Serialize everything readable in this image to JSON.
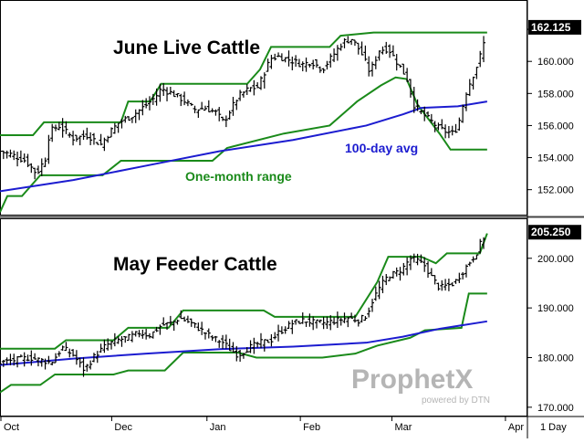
{
  "chart_data": [
    {
      "type": "ohlc",
      "title": "June Live Cattle",
      "ylim": [
        150.5,
        163.6
      ],
      "y_ticks": [
        "162.000",
        "160.000",
        "158.000",
        "156.000",
        "154.000",
        "152.000"
      ],
      "last_price": "162.125",
      "annotations": [
        {
          "text": "One-month range",
          "color": "#1a8a1a"
        },
        {
          "text": "100-day avg",
          "color": "#1c1cd0"
        }
      ],
      "price_path": [
        [
          0,
          154.4
        ],
        [
          6,
          154.2
        ],
        [
          14,
          153.8
        ],
        [
          20,
          153.0
        ],
        [
          25,
          154.0
        ],
        [
          27,
          155.6
        ],
        [
          32,
          156.0
        ],
        [
          40,
          155.2
        ],
        [
          48,
          155.4
        ],
        [
          55,
          154.8
        ],
        [
          60,
          155.6
        ],
        [
          65,
          156.2
        ],
        [
          72,
          156.6
        ],
        [
          80,
          157.3
        ],
        [
          85,
          157.8
        ],
        [
          88,
          158.3
        ],
        [
          94,
          158.0
        ],
        [
          100,
          157.6
        ],
        [
          106,
          157.0
        ],
        [
          112,
          157.1
        ],
        [
          118,
          156.8
        ],
        [
          122,
          156.2
        ],
        [
          126,
          157.0
        ],
        [
          130,
          157.8
        ],
        [
          136,
          158.3
        ],
        [
          141,
          158.4
        ],
        [
          145,
          159.5
        ],
        [
          148,
          160.2
        ],
        [
          152,
          160.3
        ],
        [
          158,
          160.1
        ],
        [
          165,
          159.8
        ],
        [
          170,
          160.0
        ],
        [
          176,
          159.5
        ],
        [
          182,
          160.4
        ],
        [
          187,
          161.2
        ],
        [
          192,
          161.4
        ],
        [
          197,
          160.6
        ],
        [
          202,
          159.3
        ],
        [
          207,
          160.7
        ],
        [
          212,
          160.8
        ],
        [
          217,
          159.9
        ],
        [
          222,
          159.0
        ],
        [
          226,
          157.3
        ],
        [
          230,
          156.8
        ],
        [
          235,
          156.3
        ],
        [
          240,
          155.8
        ],
        [
          244,
          155.6
        ],
        [
          248,
          155.5
        ],
        [
          251,
          156.4
        ],
        [
          254,
          157.9
        ],
        [
          257,
          158.8
        ],
        [
          260,
          159.6
        ],
        [
          263,
          160.6
        ],
        [
          266,
          162.0
        ]
      ],
      "range_high_path": [
        [
          0,
          155.4
        ],
        [
          18,
          155.4
        ],
        [
          24,
          156.2
        ],
        [
          66,
          156.2
        ],
        [
          70,
          157.5
        ],
        [
          82,
          157.5
        ],
        [
          88,
          158.6
        ],
        [
          135,
          158.6
        ],
        [
          142,
          159.5
        ],
        [
          148,
          160.9
        ],
        [
          180,
          160.9
        ],
        [
          186,
          161.6
        ],
        [
          204,
          161.8
        ],
        [
          266,
          161.8
        ]
      ],
      "range_low_path": [
        [
          0,
          150.6
        ],
        [
          4,
          151.6
        ],
        [
          12,
          151.6
        ],
        [
          22,
          152.9
        ],
        [
          56,
          152.9
        ],
        [
          66,
          153.8
        ],
        [
          116,
          153.8
        ],
        [
          124,
          154.6
        ],
        [
          155,
          155.5
        ],
        [
          180,
          156.0
        ],
        [
          195,
          157.5
        ],
        [
          208,
          158.5
        ],
        [
          216,
          159.0
        ],
        [
          222,
          158.9
        ],
        [
          228,
          157.3
        ],
        [
          240,
          155.5
        ],
        [
          246,
          154.5
        ],
        [
          266,
          154.5
        ]
      ],
      "avg_path": [
        [
          0,
          151.9
        ],
        [
          40,
          152.6
        ],
        [
          80,
          153.5
        ],
        [
          120,
          154.4
        ],
        [
          160,
          155.1
        ],
        [
          200,
          156.0
        ],
        [
          220,
          156.7
        ],
        [
          230,
          157.1
        ],
        [
          250,
          157.2
        ],
        [
          266,
          157.5
        ]
      ]
    },
    {
      "type": "ohlc",
      "title": "May Feeder Cattle",
      "ylim": [
        168.5,
        207.5
      ],
      "y_ticks": [
        "200.000",
        "190.000",
        "180.000",
        "170.000"
      ],
      "last_price": "205.250",
      "price_path": [
        [
          0,
          179.0
        ],
        [
          8,
          179.5
        ],
        [
          16,
          180.0
        ],
        [
          22,
          179.5
        ],
        [
          28,
          179.0
        ],
        [
          34,
          182.0
        ],
        [
          40,
          180.5
        ],
        [
          46,
          177.5
        ],
        [
          52,
          180.5
        ],
        [
          58,
          182.5
        ],
        [
          64,
          183.5
        ],
        [
          70,
          184.0
        ],
        [
          76,
          185.0
        ],
        [
          82,
          184.5
        ],
        [
          88,
          186.5
        ],
        [
          94,
          187.0
        ],
        [
          98,
          188.0
        ],
        [
          104,
          187.0
        ],
        [
          110,
          185.5
        ],
        [
          116,
          184.0
        ],
        [
          122,
          183.0
        ],
        [
          126,
          181.5
        ],
        [
          130,
          180.5
        ],
        [
          136,
          182.0
        ],
        [
          142,
          183.0
        ],
        [
          148,
          183.5
        ],
        [
          152,
          185.0
        ],
        [
          156,
          186.0
        ],
        [
          160,
          187.0
        ],
        [
          166,
          187.5
        ],
        [
          172,
          187.0
        ],
        [
          178,
          187.0
        ],
        [
          184,
          187.5
        ],
        [
          190,
          188.0
        ],
        [
          196,
          187.5
        ],
        [
          200,
          188.5
        ],
        [
          204,
          192.0
        ],
        [
          208,
          194.5
        ],
        [
          212,
          196.5
        ],
        [
          216,
          197.0
        ],
        [
          220,
          198.0
        ],
        [
          224,
          200.0
        ],
        [
          228,
          199.5
        ],
        [
          232,
          198.5
        ],
        [
          236,
          196.0
        ],
        [
          240,
          194.0
        ],
        [
          244,
          194.5
        ],
        [
          248,
          195.0
        ],
        [
          252,
          197.0
        ],
        [
          256,
          199.0
        ],
        [
          260,
          201.0
        ],
        [
          263,
          203.5
        ],
        [
          266,
          205.2
        ]
      ],
      "range_high_path": [
        [
          0,
          181.8
        ],
        [
          30,
          181.8
        ],
        [
          36,
          183.5
        ],
        [
          62,
          183.5
        ],
        [
          70,
          186.0
        ],
        [
          92,
          186.0
        ],
        [
          100,
          189.5
        ],
        [
          144,
          189.5
        ],
        [
          150,
          188.2
        ],
        [
          194,
          188.2
        ],
        [
          206,
          195.2
        ],
        [
          212,
          200.3
        ],
        [
          230,
          200.3
        ],
        [
          238,
          199.0
        ],
        [
          244,
          201.0
        ],
        [
          262,
          201.0
        ],
        [
          266,
          205.0
        ]
      ],
      "range_low_path": [
        [
          0,
          173.0
        ],
        [
          6,
          174.5
        ],
        [
          22,
          174.5
        ],
        [
          30,
          176.6
        ],
        [
          62,
          176.6
        ],
        [
          70,
          177.4
        ],
        [
          90,
          177.4
        ],
        [
          100,
          181.0
        ],
        [
          130,
          181.0
        ],
        [
          140,
          180.0
        ],
        [
          176,
          180.0
        ],
        [
          194,
          180.8
        ],
        [
          206,
          182.4
        ],
        [
          224,
          184.0
        ],
        [
          232,
          185.5
        ],
        [
          252,
          186.0
        ],
        [
          256,
          192.9
        ],
        [
          266,
          192.9
        ]
      ],
      "avg_path": [
        [
          0,
          178.5
        ],
        [
          40,
          179.8
        ],
        [
          80,
          180.8
        ],
        [
          120,
          181.7
        ],
        [
          160,
          182.2
        ],
        [
          200,
          183.0
        ],
        [
          220,
          184.2
        ],
        [
          240,
          185.8
        ],
        [
          266,
          187.3
        ]
      ]
    }
  ],
  "x_axis": {
    "labels": [
      {
        "text": "Oct",
        "x": 0
      },
      {
        "text": "Dec",
        "x": 61
      },
      {
        "text": "Jan",
        "x": 113
      },
      {
        "text": "Feb",
        "x": 164
      },
      {
        "text": "Mar",
        "x": 214
      },
      {
        "text": "Apr",
        "x": 276
      }
    ],
    "xlim": [
      0,
      288
    ]
  },
  "period_label": "1 Day",
  "watermark": {
    "brand": "ProphetX",
    "tagline": "powered by DTN"
  },
  "colors": {
    "price": "#000000",
    "range": "#1a8a1a",
    "average": "#1c1cd0",
    "last_price_bg": "#000000",
    "watermark": "#b5b5b5"
  }
}
